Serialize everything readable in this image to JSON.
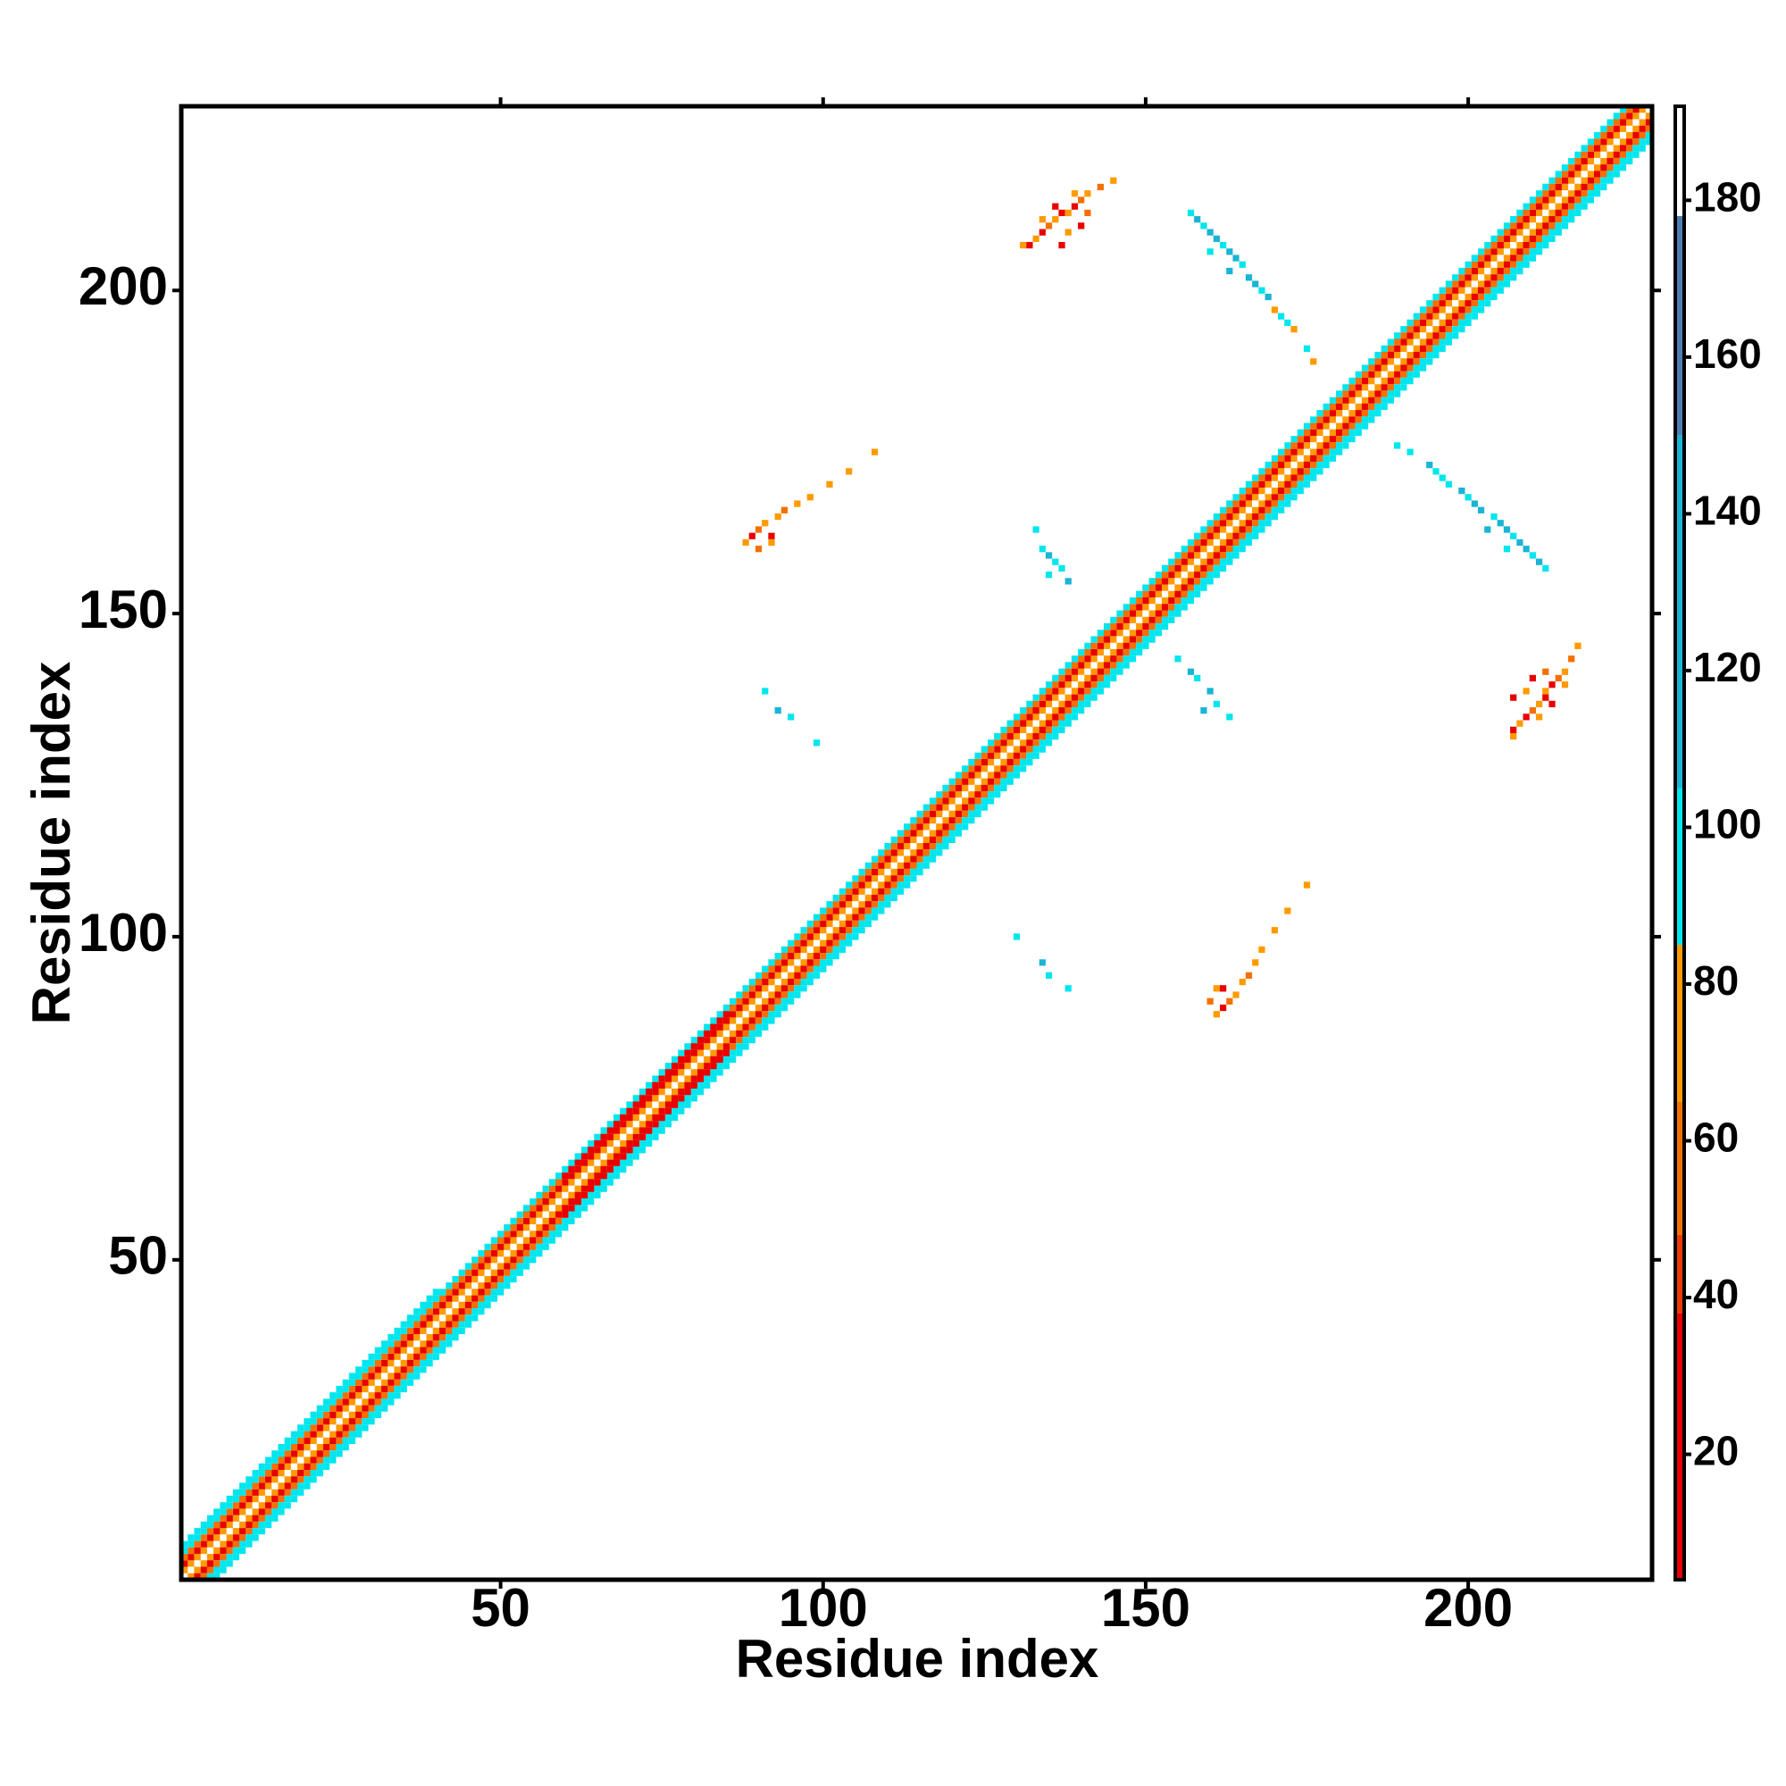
{
  "chart_data": {
    "type": "heatmap",
    "xlabel": "Residue index",
    "ylabel": "Residue index",
    "xlim": [
      0.5,
      228.5
    ],
    "ylim": [
      0.5,
      228.5
    ],
    "xticks": [
      50,
      100,
      150,
      200
    ],
    "yticks": [
      50,
      100,
      150,
      200
    ],
    "colorbar": {
      "lim": [
        4,
        192
      ],
      "ticks": [
        20,
        40,
        60,
        80,
        100,
        120,
        140,
        160,
        180
      ],
      "segments": [
        {
          "from": 4,
          "to": 38,
          "color": "#e80000"
        },
        {
          "from": 38,
          "to": 48,
          "color": "#ee3a00"
        },
        {
          "from": 48,
          "to": 65,
          "color": "#f47000"
        },
        {
          "from": 65,
          "to": 85,
          "color": "#ff9a00"
        },
        {
          "from": 85,
          "to": 105,
          "color": "#00e6ee"
        },
        {
          "from": 105,
          "to": 150,
          "color": "#1ab4d4"
        },
        {
          "from": 150,
          "to": 178,
          "color": "#4f7fb2"
        },
        {
          "from": 178,
          "to": 192,
          "color": "#ffffff"
        }
      ]
    },
    "bands": [
      {
        "offset": 0,
        "start": 1,
        "end": 228,
        "value": 185
      },
      {
        "offset": 1,
        "start": 1,
        "end": 227,
        "value": 70
      },
      {
        "offset": -1,
        "start": 2,
        "end": 228,
        "value": 70
      },
      {
        "offset": 2,
        "start": 1,
        "end": 226,
        "value": 30
      },
      {
        "offset": -2,
        "start": 3,
        "end": 228,
        "value": 30
      },
      {
        "offset": 3,
        "start": 1,
        "end": 225,
        "value": 55
      },
      {
        "offset": -3,
        "start": 4,
        "end": 228,
        "value": 55
      },
      {
        "offset": 4,
        "start": 1,
        "end": 224,
        "value": 100
      },
      {
        "offset": -4,
        "start": 5,
        "end": 228,
        "value": 100
      },
      {
        "offset": -5,
        "start": 6,
        "end": 228,
        "value": 100
      },
      {
        "offset": 5,
        "start": 1,
        "end": 40,
        "value": 100
      },
      {
        "offset": -3,
        "start": 60,
        "end": 85,
        "value": 30
      },
      {
        "offset": 3,
        "start": 60,
        "end": 85,
        "value": 30
      }
    ],
    "cells": [
      [
        131,
        207,
        70
      ],
      [
        132,
        207,
        30
      ],
      [
        133,
        208,
        70
      ],
      [
        134,
        209,
        30
      ],
      [
        135,
        210,
        55
      ],
      [
        136,
        211,
        70
      ],
      [
        137,
        212,
        30
      ],
      [
        138,
        212,
        70
      ],
      [
        139,
        213,
        30
      ],
      [
        140,
        214,
        55
      ],
      [
        141,
        215,
        70
      ],
      [
        143,
        216,
        60
      ],
      [
        145,
        217,
        70
      ],
      [
        134,
        211,
        70
      ],
      [
        136,
        213,
        30
      ],
      [
        138,
        209,
        70
      ],
      [
        140,
        210,
        30
      ],
      [
        141,
        212,
        55
      ],
      [
        137,
        207,
        30
      ],
      [
        139,
        215,
        70
      ],
      [
        207,
        131,
        70
      ],
      [
        207,
        132,
        30
      ],
      [
        208,
        133,
        70
      ],
      [
        209,
        134,
        30
      ],
      [
        210,
        135,
        55
      ],
      [
        211,
        136,
        70
      ],
      [
        212,
        137,
        30
      ],
      [
        212,
        138,
        70
      ],
      [
        213,
        139,
        30
      ],
      [
        214,
        140,
        55
      ],
      [
        215,
        141,
        70
      ],
      [
        216,
        143,
        60
      ],
      [
        217,
        145,
        70
      ],
      [
        211,
        134,
        70
      ],
      [
        213,
        136,
        30
      ],
      [
        209,
        138,
        70
      ],
      [
        210,
        140,
        30
      ],
      [
        212,
        141,
        55
      ],
      [
        207,
        137,
        30
      ],
      [
        215,
        139,
        70
      ],
      [
        157,
        212,
        100
      ],
      [
        158,
        211,
        125
      ],
      [
        159,
        210,
        100
      ],
      [
        160,
        209,
        125
      ],
      [
        161,
        208,
        125
      ],
      [
        162,
        207,
        100
      ],
      [
        163,
        206,
        125
      ],
      [
        164,
        205,
        125
      ],
      [
        165,
        204,
        100
      ],
      [
        166,
        202,
        125
      ],
      [
        167,
        201,
        125
      ],
      [
        168,
        200,
        100
      ],
      [
        169,
        199,
        125
      ],
      [
        170,
        197,
        70
      ],
      [
        171,
        196,
        100
      ],
      [
        172,
        195,
        100
      ],
      [
        173,
        194,
        70
      ],
      [
        175,
        191,
        100
      ],
      [
        176,
        189,
        70
      ],
      [
        160,
        206,
        100
      ],
      [
        163,
        203,
        125
      ],
      [
        212,
        157,
        100
      ],
      [
        211,
        158,
        125
      ],
      [
        210,
        159,
        100
      ],
      [
        209,
        160,
        125
      ],
      [
        208,
        161,
        125
      ],
      [
        207,
        162,
        100
      ],
      [
        206,
        163,
        125
      ],
      [
        205,
        164,
        125
      ],
      [
        204,
        165,
        100
      ],
      [
        202,
        166,
        125
      ],
      [
        201,
        167,
        125
      ],
      [
        200,
        168,
        100
      ],
      [
        199,
        169,
        125
      ],
      [
        197,
        170,
        100
      ],
      [
        196,
        171,
        100
      ],
      [
        195,
        172,
        100
      ],
      [
        194,
        173,
        125
      ],
      [
        191,
        175,
        100
      ],
      [
        189,
        176,
        100
      ],
      [
        206,
        160,
        100
      ],
      [
        203,
        163,
        125
      ],
      [
        88,
        161,
        70
      ],
      [
        89,
        162,
        30
      ],
      [
        90,
        163,
        55
      ],
      [
        91,
        164,
        70
      ],
      [
        92,
        162,
        30
      ],
      [
        93,
        165,
        70
      ],
      [
        94,
        166,
        55
      ],
      [
        96,
        167,
        70
      ],
      [
        98,
        168,
        70
      ],
      [
        101,
        170,
        70
      ],
      [
        104,
        172,
        70
      ],
      [
        108,
        175,
        70
      ],
      [
        90,
        160,
        60
      ],
      [
        92,
        161,
        70
      ],
      [
        161,
        88,
        70
      ],
      [
        162,
        89,
        30
      ],
      [
        163,
        90,
        55
      ],
      [
        164,
        91,
        70
      ],
      [
        162,
        92,
        30
      ],
      [
        165,
        93,
        70
      ],
      [
        166,
        94,
        55
      ],
      [
        167,
        96,
        70
      ],
      [
        168,
        98,
        70
      ],
      [
        170,
        101,
        70
      ],
      [
        172,
        104,
        70
      ],
      [
        175,
        108,
        70
      ],
      [
        160,
        90,
        60
      ],
      [
        161,
        92,
        70
      ],
      [
        133,
        163,
        100
      ],
      [
        134,
        160,
        100
      ],
      [
        135,
        159,
        125
      ],
      [
        136,
        158,
        100
      ],
      [
        137,
        157,
        100
      ],
      [
        138,
        155,
        125
      ],
      [
        135,
        156,
        100
      ],
      [
        155,
        143,
        100
      ],
      [
        157,
        141,
        125
      ],
      [
        158,
        140,
        100
      ],
      [
        160,
        138,
        125
      ],
      [
        161,
        136,
        100
      ],
      [
        163,
        134,
        100
      ],
      [
        159,
        135,
        125
      ],
      [
        91,
        138,
        100
      ],
      [
        93,
        135,
        125
      ],
      [
        95,
        134,
        100
      ],
      [
        99,
        130,
        100
      ],
      [
        130,
        100,
        100
      ],
      [
        134,
        96,
        125
      ],
      [
        135,
        94,
        100
      ],
      [
        138,
        92,
        100
      ]
    ]
  }
}
